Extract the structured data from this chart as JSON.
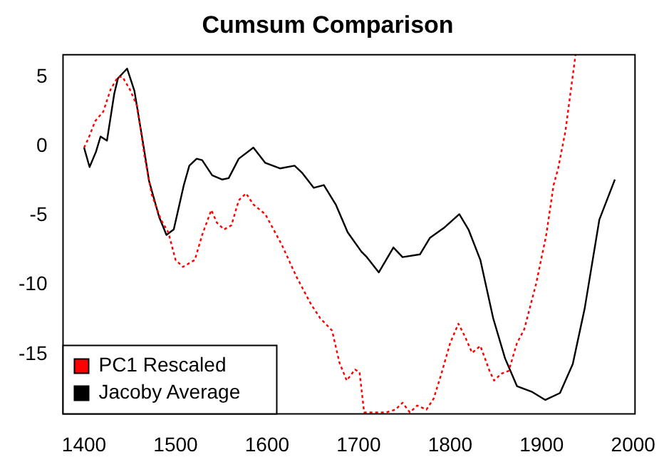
{
  "chart_data": {
    "type": "line",
    "title": "Cumsum Comparison",
    "xlim": [
      1377,
      2002
    ],
    "xticks": [
      1400,
      1500,
      1600,
      1700,
      1800,
      1900,
      2000
    ],
    "ylim": [
      -19.3,
      6.6
    ],
    "yticks": [
      -15,
      -10,
      -5,
      0,
      5
    ],
    "grid": false,
    "legend": "bottom left",
    "marker": "none",
    "series": [
      {
        "name": "PC1 Rescaled",
        "color": "#ff0000",
        "line_style": "dotted",
        "x": [
          1400,
          1405,
          1412,
          1421,
          1429,
          1437,
          1442,
          1450,
          1458,
          1466,
          1474,
          1484,
          1492,
          1500,
          1508,
          1521,
          1529,
          1539,
          1545,
          1553,
          1561,
          1569,
          1577,
          1585,
          1598,
          1616,
          1632,
          1648,
          1658,
          1671,
          1679,
          1687,
          1696,
          1701,
          1706,
          1730,
          1740,
          1748,
          1756,
          1764,
          1774,
          1782,
          1790,
          1800,
          1809,
          1816,
          1824,
          1833,
          1843,
          1848,
          1856,
          1864,
          1873,
          1881,
          1894,
          1905,
          1913,
          1918,
          1926,
          1931,
          1937
        ],
        "values": [
          -0.1,
          0.6,
          1.8,
          2.5,
          4.1,
          5.0,
          5.0,
          4.1,
          2.9,
          -0.7,
          -3.5,
          -5.3,
          -6.2,
          -8.2,
          -8.7,
          -8.2,
          -6.4,
          -4.6,
          -5.5,
          -6.0,
          -5.7,
          -3.9,
          -3.4,
          -4.2,
          -4.9,
          -7.1,
          -9.4,
          -11.4,
          -12.4,
          -13.3,
          -15.6,
          -16.9,
          -16.1,
          -16.3,
          -19.2,
          -19.2,
          -19.0,
          -18.5,
          -19.2,
          -18.7,
          -19.0,
          -18.2,
          -16.5,
          -14.2,
          -12.8,
          -13.7,
          -14.9,
          -14.4,
          -16.2,
          -16.9,
          -16.4,
          -16.2,
          -14.2,
          -13.2,
          -9.9,
          -6.4,
          -2.8,
          -1.6,
          1.1,
          3.6,
          6.6
        ]
      },
      {
        "name": "Jacoby Average",
        "color": "#000000",
        "line_style": "solid",
        "x": [
          1400,
          1406,
          1413,
          1418,
          1425,
          1433,
          1437,
          1447,
          1455,
          1465,
          1471,
          1482,
          1490,
          1498,
          1509,
          1515,
          1523,
          1529,
          1540,
          1551,
          1558,
          1569,
          1585,
          1598,
          1614,
          1630,
          1638,
          1651,
          1662,
          1675,
          1688,
          1703,
          1709,
          1722,
          1738,
          1748,
          1767,
          1778,
          1793,
          1810,
          1820,
          1833,
          1847,
          1860,
          1873,
          1889,
          1904,
          1920,
          1934,
          1947,
          1963,
          1980
        ],
        "values": [
          -0.1,
          -1.5,
          -0.4,
          0.7,
          0.4,
          3.8,
          4.9,
          5.6,
          4.0,
          0.0,
          -2.5,
          -5.1,
          -6.4,
          -6.0,
          -2.8,
          -1.4,
          -0.9,
          -1.0,
          -2.1,
          -2.4,
          -2.3,
          -0.9,
          -0.1,
          -1.2,
          -1.6,
          -1.4,
          -1.9,
          -3.0,
          -2.8,
          -4.2,
          -6.2,
          -7.6,
          -8.0,
          -9.1,
          -7.3,
          -8.0,
          -7.8,
          -6.6,
          -5.9,
          -4.9,
          -6.0,
          -8.2,
          -12.4,
          -15.3,
          -17.3,
          -17.7,
          -18.3,
          -17.8,
          -15.7,
          -11.7,
          -5.3,
          -2.4
        ]
      }
    ]
  }
}
